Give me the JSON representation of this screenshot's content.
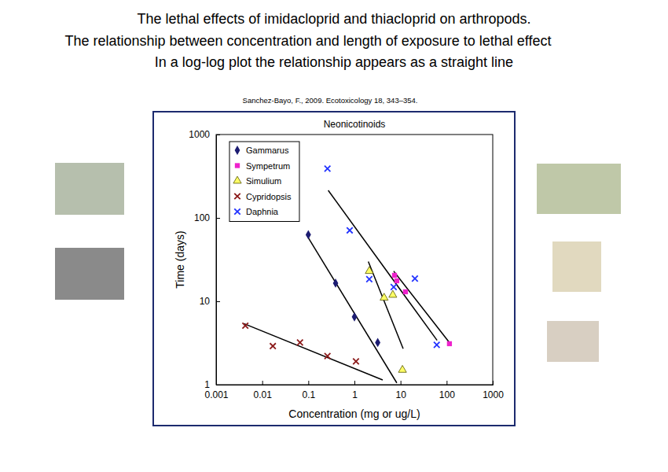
{
  "header": {
    "lines": [
      "The lethal effects of imidacloprid and thiacloprid on arthropods.",
      "The relationship between concentration and length of exposure to lethal effect",
      "In a log-log plot the relationship appears as a straight line"
    ],
    "citation": "Sanchez-Bayo, F., 2009. Ecotoxicology 18, 343–354."
  },
  "chart_data": {
    "type": "scatter",
    "title": "Neonicotinoids",
    "x_label": "Concentration (mg or ug/L)",
    "y_label": "Time (days)",
    "log": true,
    "legend": "upper left",
    "xlim": [
      0.001,
      1000
    ],
    "xticks": [
      0.001,
      0.01,
      0.1,
      1,
      10,
      100,
      1000
    ],
    "ylim": [
      1,
      1000
    ],
    "yticks": [
      1,
      10,
      100,
      1000
    ],
    "series": [
      {
        "name": "Gammarus",
        "color": "#1c1c72",
        "marker": "diamond",
        "x": [
          0.1,
          0.39,
          1,
          3.2
        ],
        "values": [
          63,
          16.5,
          6.5,
          3.2
        ],
        "fit": {
          "x": [
            0.091,
            8.3
          ],
          "values": [
            63,
            1.05
          ]
        }
      },
      {
        "name": "Sympetrum",
        "color": "#ee22cc",
        "marker": "square",
        "x": [
          7.4,
          8.3,
          12.8,
          115
        ],
        "values": [
          20.5,
          17.6,
          13,
          3.1
        ],
        "fit": {
          "x": [
            7.1,
            115
          ],
          "values": [
            23,
            3.2
          ]
        }
      },
      {
        "name": "Simulium",
        "color": "#ffff66",
        "marker": "triangle",
        "x": [
          2.1,
          4.4,
          6.8,
          11
        ],
        "values": [
          23,
          11,
          11.9,
          1.5
        ],
        "fit": {
          "x": [
            2.0,
            11.4
          ],
          "values": [
            30,
            2.7
          ]
        }
      },
      {
        "name": "Cypridopsis",
        "color": "#8b1a1a",
        "marker": "x",
        "x": [
          0.0043,
          0.017,
          0.066,
          0.26,
          1.08
        ],
        "values": [
          5.1,
          2.9,
          3.2,
          2.2,
          1.9
        ],
        "fit": {
          "x": [
            0.004,
            4.1
          ],
          "values": [
            5.4,
            1.14
          ]
        }
      },
      {
        "name": "Daphnia",
        "color": "#2233ff",
        "marker": "x",
        "x": [
          0.26,
          0.79,
          2.1,
          7.1,
          20.5,
          61
        ],
        "values": [
          390,
          71,
          18.4,
          14.8,
          18.7,
          3.0
        ],
        "fit": {
          "x": [
            0.27,
            62
          ],
          "values": [
            214,
            3.4
          ]
        }
      }
    ]
  }
}
